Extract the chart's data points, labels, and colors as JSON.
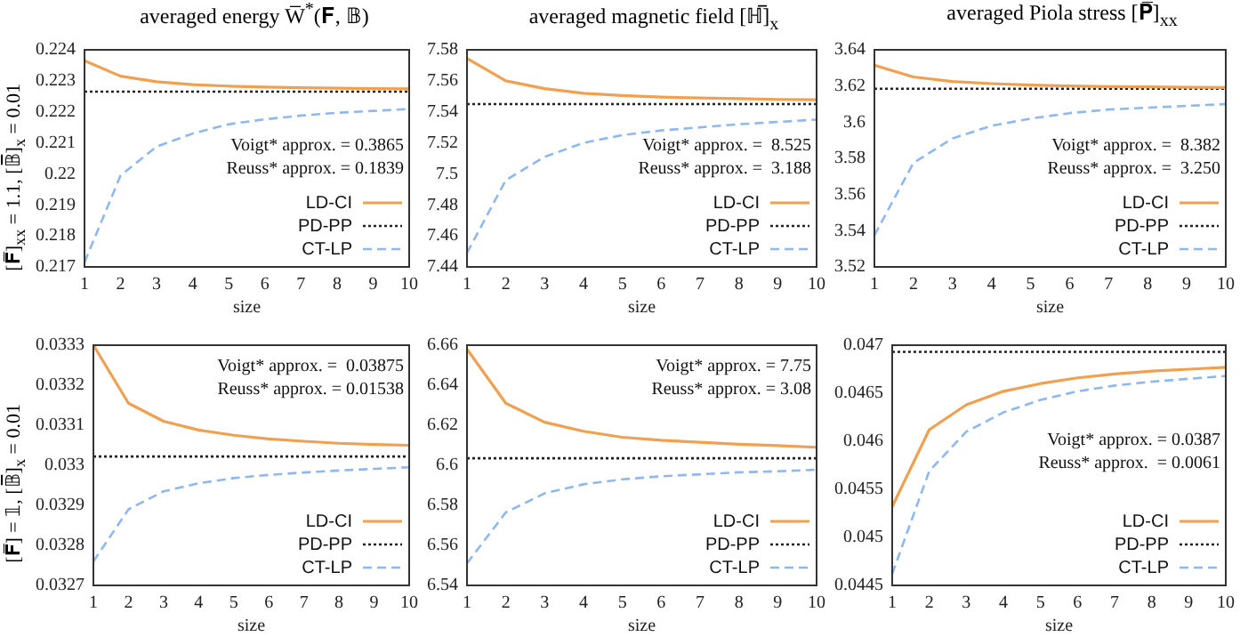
{
  "chart_data": [
    {
      "type": "line",
      "title": "averaged energy W̅$^{*}$(𝐅, 𝔹)",
      "xlabel": "size",
      "ylabel": "[𝐅̅]$_{xx}$ = 1.1,   [𝔹̅]$_{x}$ = 0.01",
      "x": [
        1,
        2,
        3,
        4,
        5,
        6,
        7,
        8,
        9,
        10
      ],
      "xlim": [
        1,
        10
      ],
      "xticks": [
        1,
        2,
        3,
        4,
        5,
        6,
        7,
        8,
        9,
        10
      ],
      "ylim": [
        0.217,
        0.224
      ],
      "yticks": [
        0.217,
        0.218,
        0.219,
        0.22,
        0.221,
        0.222,
        0.223,
        0.224
      ],
      "legend": "bottom right",
      "annotations": [
        "Voigt* approx. = 0.3865",
        "Reuss* approx. = 0.1839"
      ],
      "series": [
        {
          "name": "LD-CI",
          "color": "#f0a050",
          "line_style": "solid",
          "values": [
            0.22365,
            0.22315,
            0.22297,
            0.22288,
            0.22283,
            0.2228,
            0.22278,
            0.22276,
            0.22275,
            0.22274
          ]
        },
        {
          "name": "PD-PP",
          "color": "#222222",
          "line_style": "dotted",
          "values": [
            0.22265,
            0.22265,
            0.22265,
            0.22265,
            0.22265,
            0.22265,
            0.22265,
            0.22265,
            0.22265,
            0.22265
          ]
        },
        {
          "name": "CT-LP",
          "color": "#8fb8f0",
          "line_style": "dashed",
          "values": [
            0.21715,
            0.21995,
            0.22088,
            0.2213,
            0.2216,
            0.22176,
            0.22188,
            0.22197,
            0.22203,
            0.22209
          ]
        }
      ]
    },
    {
      "type": "line",
      "title": "averaged magnetic field [ℍ̅]$_{x}$",
      "xlabel": "size",
      "x": [
        1,
        2,
        3,
        4,
        5,
        6,
        7,
        8,
        9,
        10
      ],
      "xlim": [
        1,
        10
      ],
      "xticks": [
        1,
        2,
        3,
        4,
        5,
        6,
        7,
        8,
        9,
        10
      ],
      "ylim": [
        7.44,
        7.58
      ],
      "yticks": [
        7.44,
        7.46,
        7.48,
        7.5,
        7.52,
        7.54,
        7.56,
        7.58
      ],
      "legend": "bottom right",
      "annotations": [
        "Voigt* approx. =  8.525",
        "Reuss* approx. =  3.188"
      ],
      "series": [
        {
          "name": "LD-CI",
          "color": "#f0a050",
          "line_style": "solid",
          "values": [
            7.5745,
            7.56,
            7.555,
            7.552,
            7.5505,
            7.5495,
            7.549,
            7.5485,
            7.548,
            7.5478
          ]
        },
        {
          "name": "PD-PP",
          "color": "#222222",
          "line_style": "dotted",
          "values": [
            7.545,
            7.545,
            7.545,
            7.545,
            7.545,
            7.545,
            7.545,
            7.545,
            7.545,
            7.545
          ]
        },
        {
          "name": "CT-LP",
          "color": "#8fb8f0",
          "line_style": "dashed",
          "values": [
            7.449,
            7.496,
            7.511,
            7.52,
            7.525,
            7.528,
            7.53,
            7.532,
            7.5335,
            7.535
          ]
        }
      ]
    },
    {
      "type": "line",
      "title": "averaged Piola stress [𝐏̅]$_{xx}$",
      "xlabel": "size",
      "x": [
        1,
        2,
        3,
        4,
        5,
        6,
        7,
        8,
        9,
        10
      ],
      "xlim": [
        1,
        10
      ],
      "xticks": [
        1,
        2,
        3,
        4,
        5,
        6,
        7,
        8,
        9,
        10
      ],
      "ylim": [
        3.52,
        3.64
      ],
      "yticks": [
        3.52,
        3.54,
        3.56,
        3.58,
        3.6,
        3.62,
        3.64
      ],
      "legend": "bottom right",
      "annotations": [
        "Voigt* approx. =  8.382",
        "Reuss* approx. =  3.250"
      ],
      "series": [
        {
          "name": "LD-CI",
          "color": "#f0a050",
          "line_style": "solid",
          "values": [
            3.6315,
            3.625,
            3.6225,
            3.6213,
            3.6205,
            3.62,
            3.6197,
            3.6195,
            3.6193,
            3.6192
          ]
        },
        {
          "name": "PD-PP",
          "color": "#222222",
          "line_style": "dotted",
          "values": [
            3.6185,
            3.6185,
            3.6185,
            3.6185,
            3.6185,
            3.6185,
            3.6185,
            3.6185,
            3.6185,
            3.6185
          ]
        },
        {
          "name": "CT-LP",
          "color": "#8fb8f0",
          "line_style": "dashed",
          "values": [
            3.5375,
            3.5775,
            3.591,
            3.598,
            3.602,
            3.605,
            3.607,
            3.608,
            3.609,
            3.61
          ]
        }
      ]
    },
    {
      "type": "line",
      "xlabel": "size",
      "ylabel": "[𝐅̅] = 𝟙,   [𝔹̅]$_{x}$ = 0.01",
      "x": [
        1,
        2,
        3,
        4,
        5,
        6,
        7,
        8,
        9,
        10
      ],
      "xlim": [
        1,
        10
      ],
      "xticks": [
        1,
        2,
        3,
        4,
        5,
        6,
        7,
        8,
        9,
        10
      ],
      "ylim": [
        0.0327,
        0.0333
      ],
      "yticks": [
        0.0327,
        0.0328,
        0.0329,
        0.033,
        0.0331,
        0.0332,
        0.0333
      ],
      "legend": "bottom right",
      "annotations": [
        "Voigt* approx. =  0.03875",
        "Reuss* approx. = 0.01538"
      ],
      "series": [
        {
          "name": "LD-CI",
          "color": "#f0a050",
          "line_style": "solid",
          "values": [
            0.0333,
            0.033155,
            0.03311,
            0.033088,
            0.033075,
            0.033066,
            0.03306,
            0.033055,
            0.033052,
            0.03305
          ]
        },
        {
          "name": "PD-PP",
          "color": "#222222",
          "line_style": "dotted",
          "values": [
            0.033022,
            0.033022,
            0.033022,
            0.033022,
            0.033022,
            0.033022,
            0.033022,
            0.033022,
            0.033022,
            0.033022
          ]
        },
        {
          "name": "CT-LP",
          "color": "#8fb8f0",
          "line_style": "dashed",
          "values": [
            0.03276,
            0.03289,
            0.032935,
            0.032955,
            0.032968,
            0.032976,
            0.032982,
            0.032987,
            0.032991,
            0.032995
          ]
        }
      ]
    },
    {
      "type": "line",
      "xlabel": "size",
      "x": [
        1,
        2,
        3,
        4,
        5,
        6,
        7,
        8,
        9,
        10
      ],
      "xlim": [
        1,
        10
      ],
      "xticks": [
        1,
        2,
        3,
        4,
        5,
        6,
        7,
        8,
        9,
        10
      ],
      "ylim": [
        6.54,
        6.66
      ],
      "yticks": [
        6.54,
        6.56,
        6.58,
        6.6,
        6.62,
        6.64,
        6.66
      ],
      "legend": "bottom right",
      "annotations": [
        "Voigt* approx. = 7.75",
        "Reuss* approx. = 3.08"
      ],
      "series": [
        {
          "name": "LD-CI",
          "color": "#f0a050",
          "line_style": "solid",
          "values": [
            6.658,
            6.631,
            6.6215,
            6.617,
            6.614,
            6.6125,
            6.6115,
            6.6105,
            6.6098,
            6.609
          ]
        },
        {
          "name": "PD-PP",
          "color": "#222222",
          "line_style": "dotted",
          "values": [
            6.6035,
            6.6035,
            6.6035,
            6.6035,
            6.6035,
            6.6035,
            6.6035,
            6.6035,
            6.6035,
            6.6035
          ]
        },
        {
          "name": "CT-LP",
          "color": "#8fb8f0",
          "line_style": "dashed",
          "values": [
            6.551,
            6.5765,
            6.586,
            6.5905,
            6.593,
            6.5945,
            6.5955,
            6.5965,
            6.597,
            6.5978
          ]
        }
      ]
    },
    {
      "type": "line",
      "xlabel": "size",
      "x": [
        1,
        2,
        3,
        4,
        5,
        6,
        7,
        8,
        9,
        10
      ],
      "xlim": [
        1,
        10
      ],
      "xticks": [
        1,
        2,
        3,
        4,
        5,
        6,
        7,
        8,
        9,
        10
      ],
      "ylim": [
        0.0445,
        0.047
      ],
      "yticks": [
        0.0445,
        0.045,
        0.0455,
        0.046,
        0.0465,
        0.047
      ],
      "legend": "bottom right",
      "annotations": [
        "Voigt* approx. = 0.0387",
        "Reuss* approx.  = 0.0061"
      ],
      "series": [
        {
          "name": "LD-CI",
          "color": "#f0a050",
          "line_style": "solid",
          "values": [
            0.04532,
            0.04612,
            0.04638,
            0.04652,
            0.0466,
            0.04666,
            0.0467,
            0.04673,
            0.04675,
            0.04677
          ]
        },
        {
          "name": "PD-PP",
          "color": "#222222",
          "line_style": "dotted",
          "values": [
            0.04693,
            0.04693,
            0.04693,
            0.04693,
            0.04693,
            0.04693,
            0.04693,
            0.04693,
            0.04693,
            0.04693
          ]
        },
        {
          "name": "CT-LP",
          "color": "#8fb8f0",
          "line_style": "dashed",
          "values": [
            0.04462,
            0.04569,
            0.0461,
            0.0463,
            0.04643,
            0.04652,
            0.04658,
            0.04662,
            0.04665,
            0.04668
          ]
        }
      ]
    }
  ]
}
